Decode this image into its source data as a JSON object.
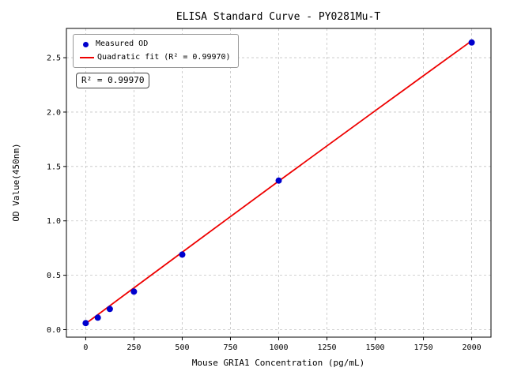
{
  "figure": {
    "background": "#ffffff",
    "grid_color": "#c3c3c3",
    "frame_color": "#000000"
  },
  "chart_data": {
    "type": "scatter_line",
    "title": "ELISA Standard Curve - PY0281Mu-T",
    "xlabel": "Mouse GRIA1 Concentration (pg/mL)",
    "ylabel": "OD Value(450nm)",
    "xlim": [
      -100,
      2100
    ],
    "ylim": [
      -0.069,
      2.769
    ],
    "xticks": [
      0,
      250,
      500,
      750,
      1000,
      1250,
      1500,
      1750,
      2000
    ],
    "yticks": [
      "0.0",
      "0.5",
      "1.0",
      "1.5",
      "2.0",
      "2.5"
    ],
    "grid": true,
    "legend_position": "upper left",
    "series": [
      {
        "name": "Measured OD",
        "type": "scatter",
        "color": "#0000cd",
        "x": [
          0,
          62.5,
          125,
          250,
          500,
          1000,
          2000
        ],
        "y": [
          0.06,
          0.11,
          0.19,
          0.35,
          0.69,
          1.37,
          2.64
        ]
      },
      {
        "name": "Quadratic fit (R² = 0.99970)",
        "type": "line",
        "color": "#ee0000",
        "x": [
          0,
          250,
          500,
          750,
          1000,
          1250,
          1500,
          1750,
          2000
        ],
        "y": [
          0.055,
          0.384,
          0.712,
          1.039,
          1.365,
          1.689,
          2.012,
          2.334,
          2.655
        ]
      }
    ],
    "annotation": "R² = 0.99970",
    "r_squared": "0.99970"
  }
}
